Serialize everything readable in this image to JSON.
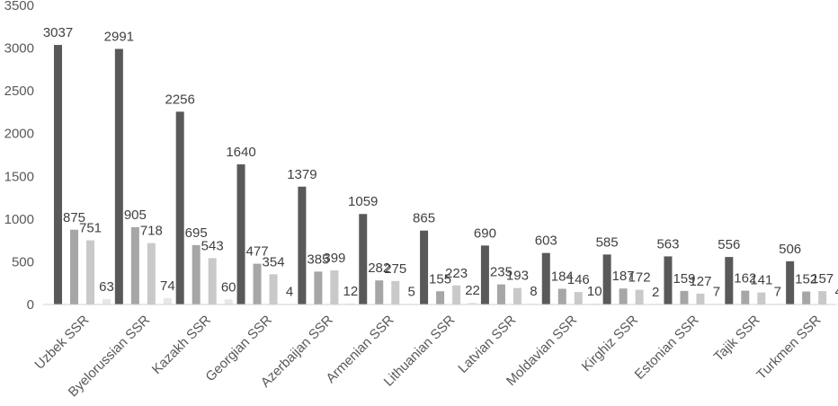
{
  "chart_data": {
    "type": "bar",
    "categories": [
      "Uzbek SSR",
      "Byelorussian SSR",
      "Kazakh SSR",
      "Georgian SSR",
      "Azerbaijan SSR",
      "Armenian SSR",
      "Lithuanian SSR",
      "Latvian SSR",
      "Moldavian SSR",
      "Kirghiz SSR",
      "Estonian SSR",
      "Tajik SSR",
      "Turkmen SSR"
    ],
    "series": [
      {
        "values": [
          3037,
          2991,
          2256,
          1640,
          1379,
          1059,
          865,
          690,
          603,
          585,
          563,
          556,
          506
        ],
        "color": "#595959"
      },
      {
        "values": [
          875,
          905,
          695,
          477,
          385,
          282,
          155,
          235,
          184,
          187,
          159,
          162,
          152
        ],
        "color": "#a6a6a6"
      },
      {
        "values": [
          751,
          718,
          543,
          354,
          399,
          275,
          223,
          193,
          146,
          172,
          127,
          141,
          157
        ],
        "color": "#c9c9c9"
      },
      {
        "values": [
          63,
          74,
          60,
          4,
          12,
          5,
          22,
          8,
          10,
          2,
          7,
          7,
          4
        ],
        "color": "#e7e7e7"
      }
    ],
    "yticks": [
      0,
      500,
      1000,
      1500,
      2000,
      2500,
      3000,
      3500
    ],
    "ylim": [
      0,
      3500
    ],
    "title": "",
    "xlabel": "",
    "ylabel": "",
    "grid": false,
    "legend": "none",
    "data_labels": true
  }
}
